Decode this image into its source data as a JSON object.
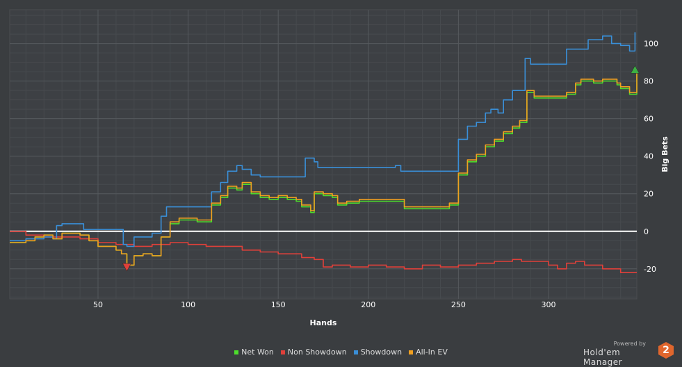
{
  "chart_data": {
    "type": "line",
    "xlabel": "Hands",
    "ylabel": "Big Bets",
    "xlim": [
      1,
      349
    ],
    "ylim": [
      -36,
      118
    ],
    "x_ticks": [
      50,
      100,
      150,
      200,
      250,
      300
    ],
    "y_ticks": [
      -20,
      0,
      20,
      40,
      60,
      80,
      100
    ],
    "grid": true,
    "legend_position": "bottom",
    "series": [
      {
        "name": "Net Won",
        "color": "#4dde2c",
        "points": [
          [
            1,
            -6
          ],
          [
            10,
            -5
          ],
          [
            15,
            -3
          ],
          [
            20,
            -2
          ],
          [
            25,
            -4
          ],
          [
            30,
            -1
          ],
          [
            35,
            -1
          ],
          [
            40,
            -2
          ],
          [
            45,
            -5
          ],
          [
            50,
            -8
          ],
          [
            55,
            -8
          ],
          [
            60,
            -10
          ],
          [
            63,
            -12
          ],
          [
            66,
            -18
          ],
          [
            70,
            -13
          ],
          [
            75,
            -12
          ],
          [
            80,
            -13
          ],
          [
            85,
            -3
          ],
          [
            90,
            4
          ],
          [
            95,
            6
          ],
          [
            100,
            6
          ],
          [
            105,
            5
          ],
          [
            110,
            5
          ],
          [
            113,
            14
          ],
          [
            118,
            18
          ],
          [
            122,
            23
          ],
          [
            127,
            22
          ],
          [
            130,
            25
          ],
          [
            135,
            20
          ],
          [
            140,
            18
          ],
          [
            145,
            17
          ],
          [
            150,
            18
          ],
          [
            155,
            17
          ],
          [
            160,
            16
          ],
          [
            163,
            13
          ],
          [
            168,
            10
          ],
          [
            170,
            20
          ],
          [
            172,
            20
          ],
          [
            175,
            19
          ],
          [
            180,
            18
          ],
          [
            183,
            14
          ],
          [
            188,
            15
          ],
          [
            195,
            16
          ],
          [
            200,
            16
          ],
          [
            210,
            16
          ],
          [
            217,
            16
          ],
          [
            220,
            12
          ],
          [
            230,
            12
          ],
          [
            240,
            12
          ],
          [
            245,
            14
          ],
          [
            248,
            14
          ],
          [
            250,
            30
          ],
          [
            253,
            30
          ],
          [
            255,
            37
          ],
          [
            260,
            40
          ],
          [
            265,
            45
          ],
          [
            270,
            48
          ],
          [
            275,
            52
          ],
          [
            280,
            55
          ],
          [
            284,
            58
          ],
          [
            288,
            74
          ],
          [
            292,
            71
          ],
          [
            300,
            71
          ],
          [
            305,
            71
          ],
          [
            310,
            73
          ],
          [
            315,
            78
          ],
          [
            318,
            80
          ],
          [
            325,
            79
          ],
          [
            330,
            80
          ],
          [
            335,
            80
          ],
          [
            338,
            78
          ],
          [
            340,
            76
          ],
          [
            345,
            73
          ],
          [
            349,
            85
          ]
        ]
      },
      {
        "name": "Non Showdown",
        "color": "#e0403a",
        "points": [
          [
            1,
            0
          ],
          [
            10,
            -2
          ],
          [
            20,
            -3
          ],
          [
            30,
            -3
          ],
          [
            40,
            -4
          ],
          [
            50,
            -6
          ],
          [
            60,
            -7
          ],
          [
            70,
            -8
          ],
          [
            80,
            -7
          ],
          [
            90,
            -6
          ],
          [
            100,
            -7
          ],
          [
            110,
            -8
          ],
          [
            120,
            -8
          ],
          [
            130,
            -10
          ],
          [
            140,
            -11
          ],
          [
            150,
            -12
          ],
          [
            160,
            -12
          ],
          [
            163,
            -14
          ],
          [
            170,
            -15
          ],
          [
            175,
            -19
          ],
          [
            180,
            -18
          ],
          [
            190,
            -19
          ],
          [
            200,
            -18
          ],
          [
            210,
            -19
          ],
          [
            220,
            -20
          ],
          [
            230,
            -18
          ],
          [
            240,
            -19
          ],
          [
            250,
            -18
          ],
          [
            260,
            -17
          ],
          [
            270,
            -16
          ],
          [
            280,
            -15
          ],
          [
            285,
            -16
          ],
          [
            290,
            -16
          ],
          [
            300,
            -18
          ],
          [
            305,
            -20
          ],
          [
            310,
            -17
          ],
          [
            315,
            -16
          ],
          [
            320,
            -18
          ],
          [
            330,
            -20
          ],
          [
            340,
            -22
          ],
          [
            349,
            -22
          ]
        ]
      },
      {
        "name": "Showdown",
        "color": "#3a8fd8",
        "points": [
          [
            1,
            -5
          ],
          [
            10,
            -4
          ],
          [
            20,
            -3
          ],
          [
            25,
            -4
          ],
          [
            27,
            3
          ],
          [
            30,
            4
          ],
          [
            40,
            4
          ],
          [
            42,
            1
          ],
          [
            55,
            1
          ],
          [
            62,
            1
          ],
          [
            64,
            -7
          ],
          [
            66,
            -8
          ],
          [
            70,
            -3
          ],
          [
            75,
            -3
          ],
          [
            80,
            -1
          ],
          [
            85,
            8
          ],
          [
            88,
            13
          ],
          [
            95,
            13
          ],
          [
            100,
            13
          ],
          [
            105,
            13
          ],
          [
            110,
            13
          ],
          [
            113,
            21
          ],
          [
            118,
            26
          ],
          [
            122,
            32
          ],
          [
            127,
            35
          ],
          [
            130,
            33
          ],
          [
            135,
            30
          ],
          [
            140,
            29
          ],
          [
            145,
            29
          ],
          [
            150,
            29
          ],
          [
            155,
            29
          ],
          [
            160,
            29
          ],
          [
            163,
            29
          ],
          [
            165,
            39
          ],
          [
            170,
            37
          ],
          [
            172,
            34
          ],
          [
            180,
            34
          ],
          [
            190,
            34
          ],
          [
            200,
            34
          ],
          [
            210,
            34
          ],
          [
            215,
            35
          ],
          [
            218,
            32
          ],
          [
            230,
            32
          ],
          [
            240,
            32
          ],
          [
            245,
            32
          ],
          [
            248,
            32
          ],
          [
            250,
            49
          ],
          [
            253,
            49
          ],
          [
            255,
            56
          ],
          [
            260,
            58
          ],
          [
            265,
            63
          ],
          [
            268,
            65
          ],
          [
            272,
            63
          ],
          [
            275,
            70
          ],
          [
            280,
            75
          ],
          [
            284,
            75
          ],
          [
            287,
            92
          ],
          [
            290,
            89
          ],
          [
            300,
            89
          ],
          [
            305,
            89
          ],
          [
            310,
            97
          ],
          [
            315,
            97
          ],
          [
            320,
            97
          ],
          [
            322,
            102
          ],
          [
            325,
            102
          ],
          [
            330,
            104
          ],
          [
            335,
            100
          ],
          [
            340,
            99
          ],
          [
            345,
            96
          ],
          [
            348,
            106
          ]
        ]
      },
      {
        "name": "All-In EV",
        "color": "#f0a020",
        "points": [
          [
            1,
            -6
          ],
          [
            10,
            -5
          ],
          [
            15,
            -3
          ],
          [
            20,
            -2
          ],
          [
            25,
            -4
          ],
          [
            30,
            -1
          ],
          [
            35,
            -1
          ],
          [
            40,
            -2
          ],
          [
            45,
            -5
          ],
          [
            50,
            -8
          ],
          [
            55,
            -8
          ],
          [
            60,
            -10
          ],
          [
            63,
            -12
          ],
          [
            66,
            -18
          ],
          [
            70,
            -13
          ],
          [
            75,
            -12
          ],
          [
            80,
            -13
          ],
          [
            85,
            -3
          ],
          [
            90,
            5
          ],
          [
            95,
            7
          ],
          [
            100,
            7
          ],
          [
            105,
            6
          ],
          [
            110,
            6
          ],
          [
            113,
            15
          ],
          [
            118,
            19
          ],
          [
            122,
            24
          ],
          [
            127,
            23
          ],
          [
            130,
            26
          ],
          [
            135,
            21
          ],
          [
            140,
            19
          ],
          [
            145,
            18
          ],
          [
            150,
            19
          ],
          [
            155,
            18
          ],
          [
            160,
            17
          ],
          [
            163,
            14
          ],
          [
            168,
            11
          ],
          [
            170,
            21
          ],
          [
            172,
            21
          ],
          [
            175,
            20
          ],
          [
            180,
            19
          ],
          [
            183,
            15
          ],
          [
            188,
            16
          ],
          [
            195,
            17
          ],
          [
            200,
            17
          ],
          [
            210,
            17
          ],
          [
            217,
            17
          ],
          [
            220,
            13
          ],
          [
            230,
            13
          ],
          [
            240,
            13
          ],
          [
            245,
            15
          ],
          [
            248,
            15
          ],
          [
            250,
            31
          ],
          [
            253,
            31
          ],
          [
            255,
            38
          ],
          [
            260,
            41
          ],
          [
            265,
            46
          ],
          [
            270,
            49
          ],
          [
            275,
            53
          ],
          [
            280,
            56
          ],
          [
            284,
            59
          ],
          [
            288,
            75
          ],
          [
            292,
            72
          ],
          [
            300,
            72
          ],
          [
            305,
            72
          ],
          [
            310,
            74
          ],
          [
            315,
            79
          ],
          [
            318,
            81
          ],
          [
            325,
            80
          ],
          [
            330,
            81
          ],
          [
            335,
            81
          ],
          [
            338,
            79
          ],
          [
            340,
            77
          ],
          [
            345,
            74
          ],
          [
            349,
            86
          ]
        ]
      }
    ],
    "markers": [
      {
        "type": "min",
        "x": 66,
        "y": -19,
        "color": "#e0403a"
      },
      {
        "type": "max",
        "x": 348,
        "y": 86,
        "color": "#3cb043"
      }
    ]
  },
  "branding": {
    "powered_by": "Powered by",
    "name": "Hold'em Manager",
    "logo_text": "2"
  }
}
